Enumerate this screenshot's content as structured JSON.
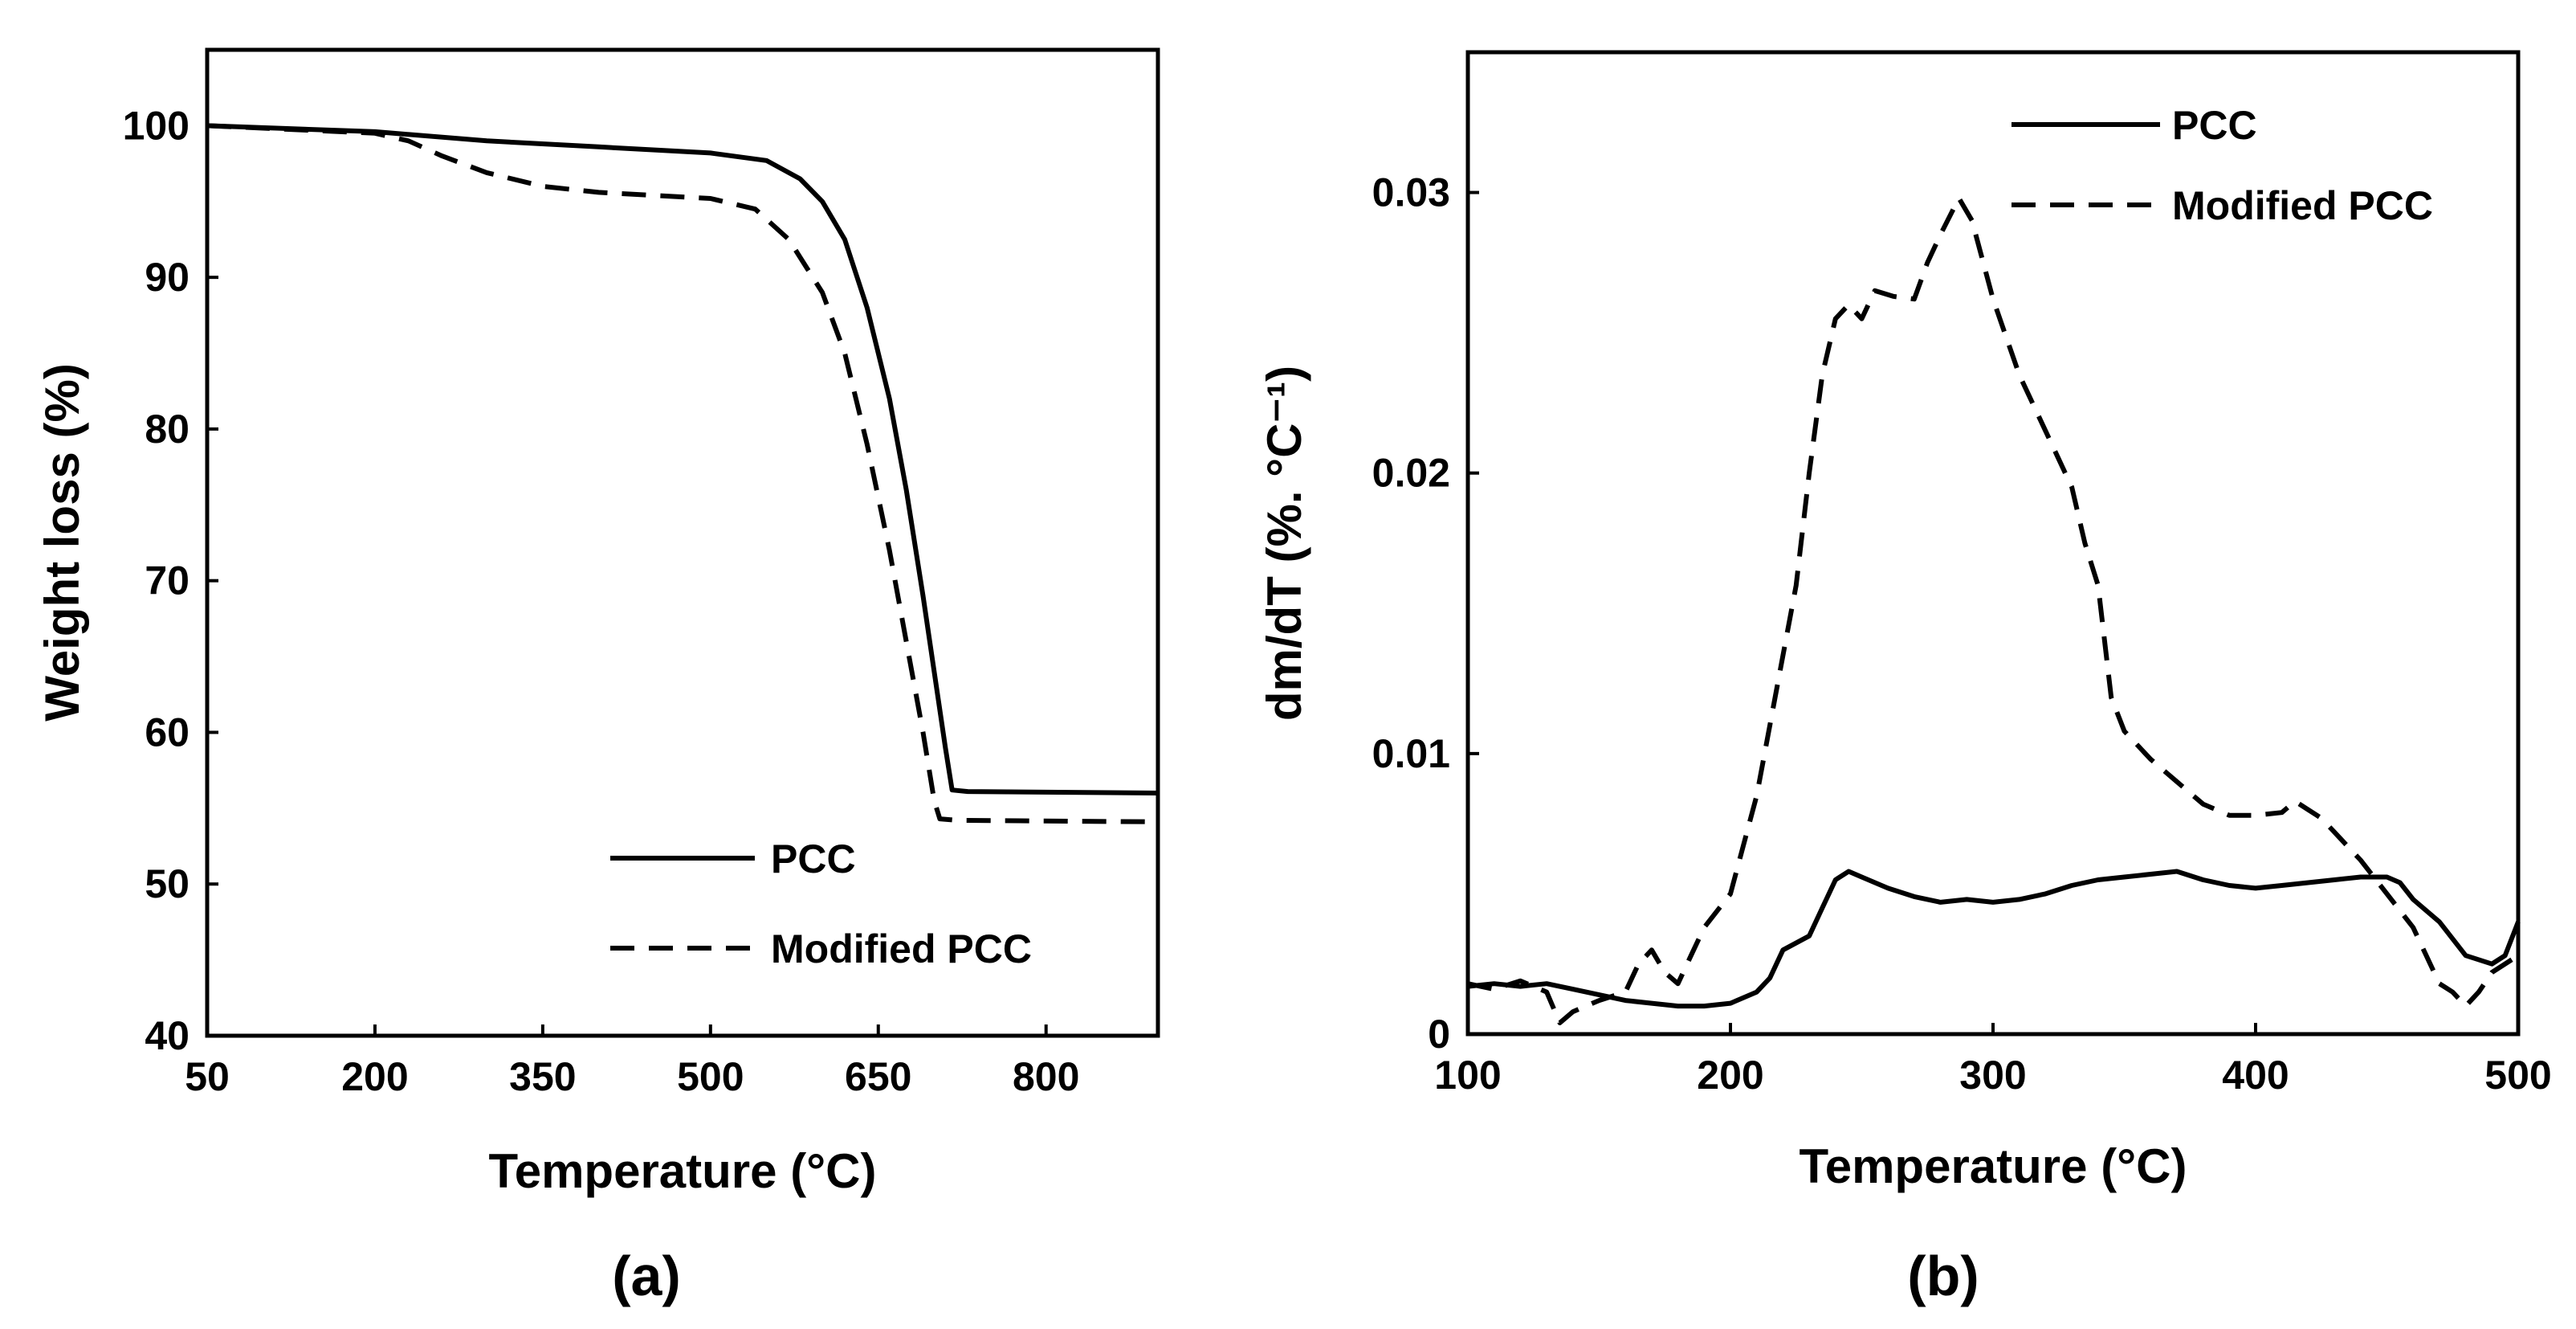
{
  "chart_data": [
    {
      "type": "line",
      "panel_label": "(a)",
      "xlabel": "Temperature (°C)",
      "ylabel": "Weight loss (%)",
      "xlim": [
        50,
        900
      ],
      "ylim": [
        40,
        105
      ],
      "xticks": [
        50,
        200,
        350,
        500,
        650,
        800
      ],
      "yticks": [
        40,
        50,
        60,
        70,
        80,
        90,
        100
      ],
      "legend_position": "bottom-right",
      "series": [
        {
          "name": "PCC",
          "style": "solid",
          "points": [
            [
              50,
              100
            ],
            [
              200,
              99.6
            ],
            [
              300,
              99
            ],
            [
              400,
              98.6
            ],
            [
              500,
              98.2
            ],
            [
              550,
              97.7
            ],
            [
              580,
              96.5
            ],
            [
              600,
              95
            ],
            [
              620,
              92.5
            ],
            [
              640,
              88
            ],
            [
              660,
              82
            ],
            [
              675,
              76
            ],
            [
              690,
              69
            ],
            [
              700,
              64
            ],
            [
              710,
              59
            ],
            [
              716,
              56.2
            ],
            [
              730,
              56.1
            ],
            [
              900,
              56
            ]
          ]
        },
        {
          "name": "Modified PCC",
          "style": "dashed",
          "points": [
            [
              50,
              100
            ],
            [
              200,
              99.5
            ],
            [
              230,
              99
            ],
            [
              260,
              98
            ],
            [
              300,
              96.9
            ],
            [
              350,
              96
            ],
            [
              400,
              95.6
            ],
            [
              450,
              95.4
            ],
            [
              500,
              95.2
            ],
            [
              540,
              94.5
            ],
            [
              570,
              92.5
            ],
            [
              600,
              89
            ],
            [
              620,
              85
            ],
            [
              640,
              79
            ],
            [
              660,
              72
            ],
            [
              675,
              66
            ],
            [
              690,
              60
            ],
            [
              700,
              55.5
            ],
            [
              705,
              54.3
            ],
            [
              720,
              54.2
            ],
            [
              900,
              54.1
            ]
          ]
        }
      ]
    },
    {
      "type": "line",
      "panel_label": "(b)",
      "xlabel": "Temperature (°C)",
      "ylabel": "dm/dT (%. °C⁻¹)",
      "xlim": [
        100,
        500
      ],
      "ylim": [
        0,
        0.035
      ],
      "xticks": [
        100,
        200,
        300,
        400,
        500
      ],
      "yticks": [
        0,
        0.01,
        0.02,
        0.03
      ],
      "ytick_labels": [
        "0",
        "0.01",
        "0.02",
        "0.03"
      ],
      "legend_position": "top-right",
      "series": [
        {
          "name": "PCC",
          "style": "solid",
          "points": [
            [
              100,
              0.0017
            ],
            [
              110,
              0.0018
            ],
            [
              120,
              0.0017
            ],
            [
              130,
              0.0018
            ],
            [
              140,
              0.0016
            ],
            [
              150,
              0.0014
            ],
            [
              160,
              0.0012
            ],
            [
              170,
              0.0011
            ],
            [
              180,
              0.001
            ],
            [
              190,
              0.001
            ],
            [
              200,
              0.0011
            ],
            [
              210,
              0.0015
            ],
            [
              215,
              0.002
            ],
            [
              220,
              0.003
            ],
            [
              230,
              0.0035
            ],
            [
              235,
              0.0045
            ],
            [
              240,
              0.0055
            ],
            [
              245,
              0.0058
            ],
            [
              250,
              0.0056
            ],
            [
              260,
              0.0052
            ],
            [
              270,
              0.0049
            ],
            [
              280,
              0.0047
            ],
            [
              290,
              0.0048
            ],
            [
              300,
              0.0047
            ],
            [
              310,
              0.0048
            ],
            [
              320,
              0.005
            ],
            [
              330,
              0.0053
            ],
            [
              340,
              0.0055
            ],
            [
              350,
              0.0056
            ],
            [
              360,
              0.0057
            ],
            [
              370,
              0.0058
            ],
            [
              380,
              0.0055
            ],
            [
              390,
              0.0053
            ],
            [
              400,
              0.0052
            ],
            [
              410,
              0.0053
            ],
            [
              420,
              0.0054
            ],
            [
              430,
              0.0055
            ],
            [
              440,
              0.0056
            ],
            [
              450,
              0.0056
            ],
            [
              455,
              0.0054
            ],
            [
              460,
              0.0048
            ],
            [
              470,
              0.004
            ],
            [
              480,
              0.0028
            ],
            [
              490,
              0.0025
            ],
            [
              495,
              0.0028
            ],
            [
              500,
              0.004
            ]
          ]
        },
        {
          "name": "Modified PCC",
          "style": "dashed",
          "points": [
            [
              100,
              0.0018
            ],
            [
              110,
              0.0016
            ],
            [
              120,
              0.0019
            ],
            [
              130,
              0.0015
            ],
            [
              135,
              0.0004
            ],
            [
              140,
              0.0008
            ],
            [
              150,
              0.0012
            ],
            [
              160,
              0.0015
            ],
            [
              165,
              0.0025
            ],
            [
              170,
              0.003
            ],
            [
              175,
              0.0022
            ],
            [
              180,
              0.0018
            ],
            [
              185,
              0.0028
            ],
            [
              190,
              0.0038
            ],
            [
              200,
              0.005
            ],
            [
              210,
              0.0085
            ],
            [
              220,
              0.0135
            ],
            [
              225,
              0.016
            ],
            [
              230,
              0.02
            ],
            [
              235,
              0.0235
            ],
            [
              240,
              0.0255
            ],
            [
              245,
              0.026
            ],
            [
              250,
              0.0255
            ],
            [
              255,
              0.0265
            ],
            [
              262,
              0.0263
            ],
            [
              270,
              0.0262
            ],
            [
              275,
              0.0275
            ],
            [
              280,
              0.0285
            ],
            [
              287,
              0.0298
            ],
            [
              292,
              0.029
            ],
            [
              300,
              0.0262
            ],
            [
              310,
              0.0235
            ],
            [
              320,
              0.0215
            ],
            [
              325,
              0.0205
            ],
            [
              330,
              0.0195
            ],
            [
              335,
              0.0175
            ],
            [
              340,
              0.016
            ],
            [
              345,
              0.012
            ],
            [
              350,
              0.0108
            ],
            [
              360,
              0.0098
            ],
            [
              370,
              0.009
            ],
            [
              380,
              0.0082
            ],
            [
              390,
              0.0078
            ],
            [
              400,
              0.0078
            ],
            [
              410,
              0.0079
            ],
            [
              415,
              0.0083
            ],
            [
              420,
              0.008
            ],
            [
              425,
              0.0077
            ],
            [
              430,
              0.0072
            ],
            [
              440,
              0.0062
            ],
            [
              450,
              0.005
            ],
            [
              460,
              0.0038
            ],
            [
              470,
              0.0018
            ],
            [
              475,
              0.0015
            ],
            [
              480,
              0.001
            ],
            [
              485,
              0.0015
            ],
            [
              490,
              0.0022
            ],
            [
              500,
              0.0028
            ]
          ]
        }
      ]
    }
  ]
}
